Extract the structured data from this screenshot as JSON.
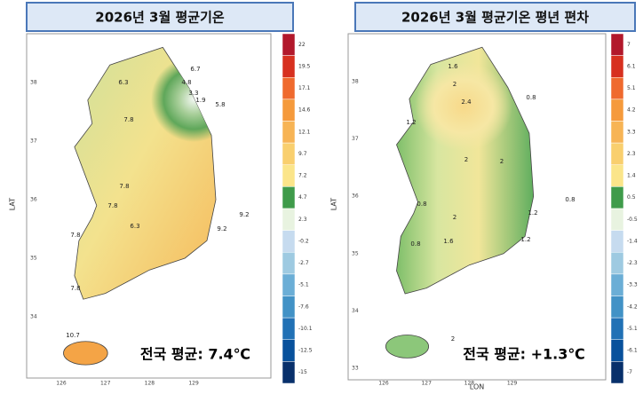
{
  "panels": [
    {
      "title": "2026년 3월 평균기온",
      "y_label": "LAT",
      "lon_ticks": [
        "126",
        "127",
        "128",
        "129"
      ],
      "lat_ticks": [
        "34",
        "35",
        "36",
        "37",
        "38"
      ],
      "legend": [
        "22",
        "19.5",
        "17.1",
        "14.6",
        "12.1",
        "9.7",
        "7.2",
        "4.7",
        "2.3",
        "-0.2",
        "-2.7",
        "-5.1",
        "-7.6",
        "-10.1",
        "-12.5",
        "-15"
      ],
      "legend_colors": [
        "#b2182b",
        "#d7301f",
        "#ef6a2e",
        "#f59a3c",
        "#f7b455",
        "#f9cf6e",
        "#fbe58a",
        "#3f9b4a",
        "#e8f3e0",
        "#c6dbef",
        "#9ecae1",
        "#6baed6",
        "#4292c6",
        "#2171b5",
        "#08519c",
        "#08306b"
      ],
      "contours": [
        "6.3",
        "4.8",
        "6.7",
        "3.3",
        "1.9",
        "5.8",
        "7.8",
        "7.8",
        "7.8",
        "6.3",
        "9.2",
        "9.2",
        "7.8",
        "7.8",
        "10.7"
      ],
      "average": "전국 평균: 7.4℃"
    },
    {
      "title": "2026년 3월 평균기온 평년 편차",
      "y_label": "LAT",
      "x_label": "LON",
      "lon_ticks": [
        "126",
        "127",
        "128",
        "129"
      ],
      "lat_ticks": [
        "33",
        "34",
        "35",
        "36",
        "37",
        "38"
      ],
      "legend": [
        "7",
        "6.1",
        "5.1",
        "4.2",
        "3.3",
        "2.3",
        "1.4",
        "0.5",
        "-0.5",
        "-1.4",
        "-2.3",
        "-3.3",
        "-4.2",
        "-5.1",
        "-6.1",
        "-7"
      ],
      "legend_colors": [
        "#b2182b",
        "#d7301f",
        "#ef6a2e",
        "#f59a3c",
        "#f7b455",
        "#f9cf6e",
        "#fbe58a",
        "#3f9b4a",
        "#e8f3e0",
        "#c6dbef",
        "#9ecae1",
        "#6baed6",
        "#4292c6",
        "#2171b5",
        "#08519c",
        "#08306b"
      ],
      "contours": [
        "1.6",
        "2",
        "2.4",
        "1.2",
        "0.8",
        "2",
        "2",
        "0.8",
        "2",
        "1.2",
        "1.6",
        "1.2",
        "0.8",
        "0.8",
        "2"
      ],
      "average": "전국 평균: +1.3℃"
    }
  ]
}
